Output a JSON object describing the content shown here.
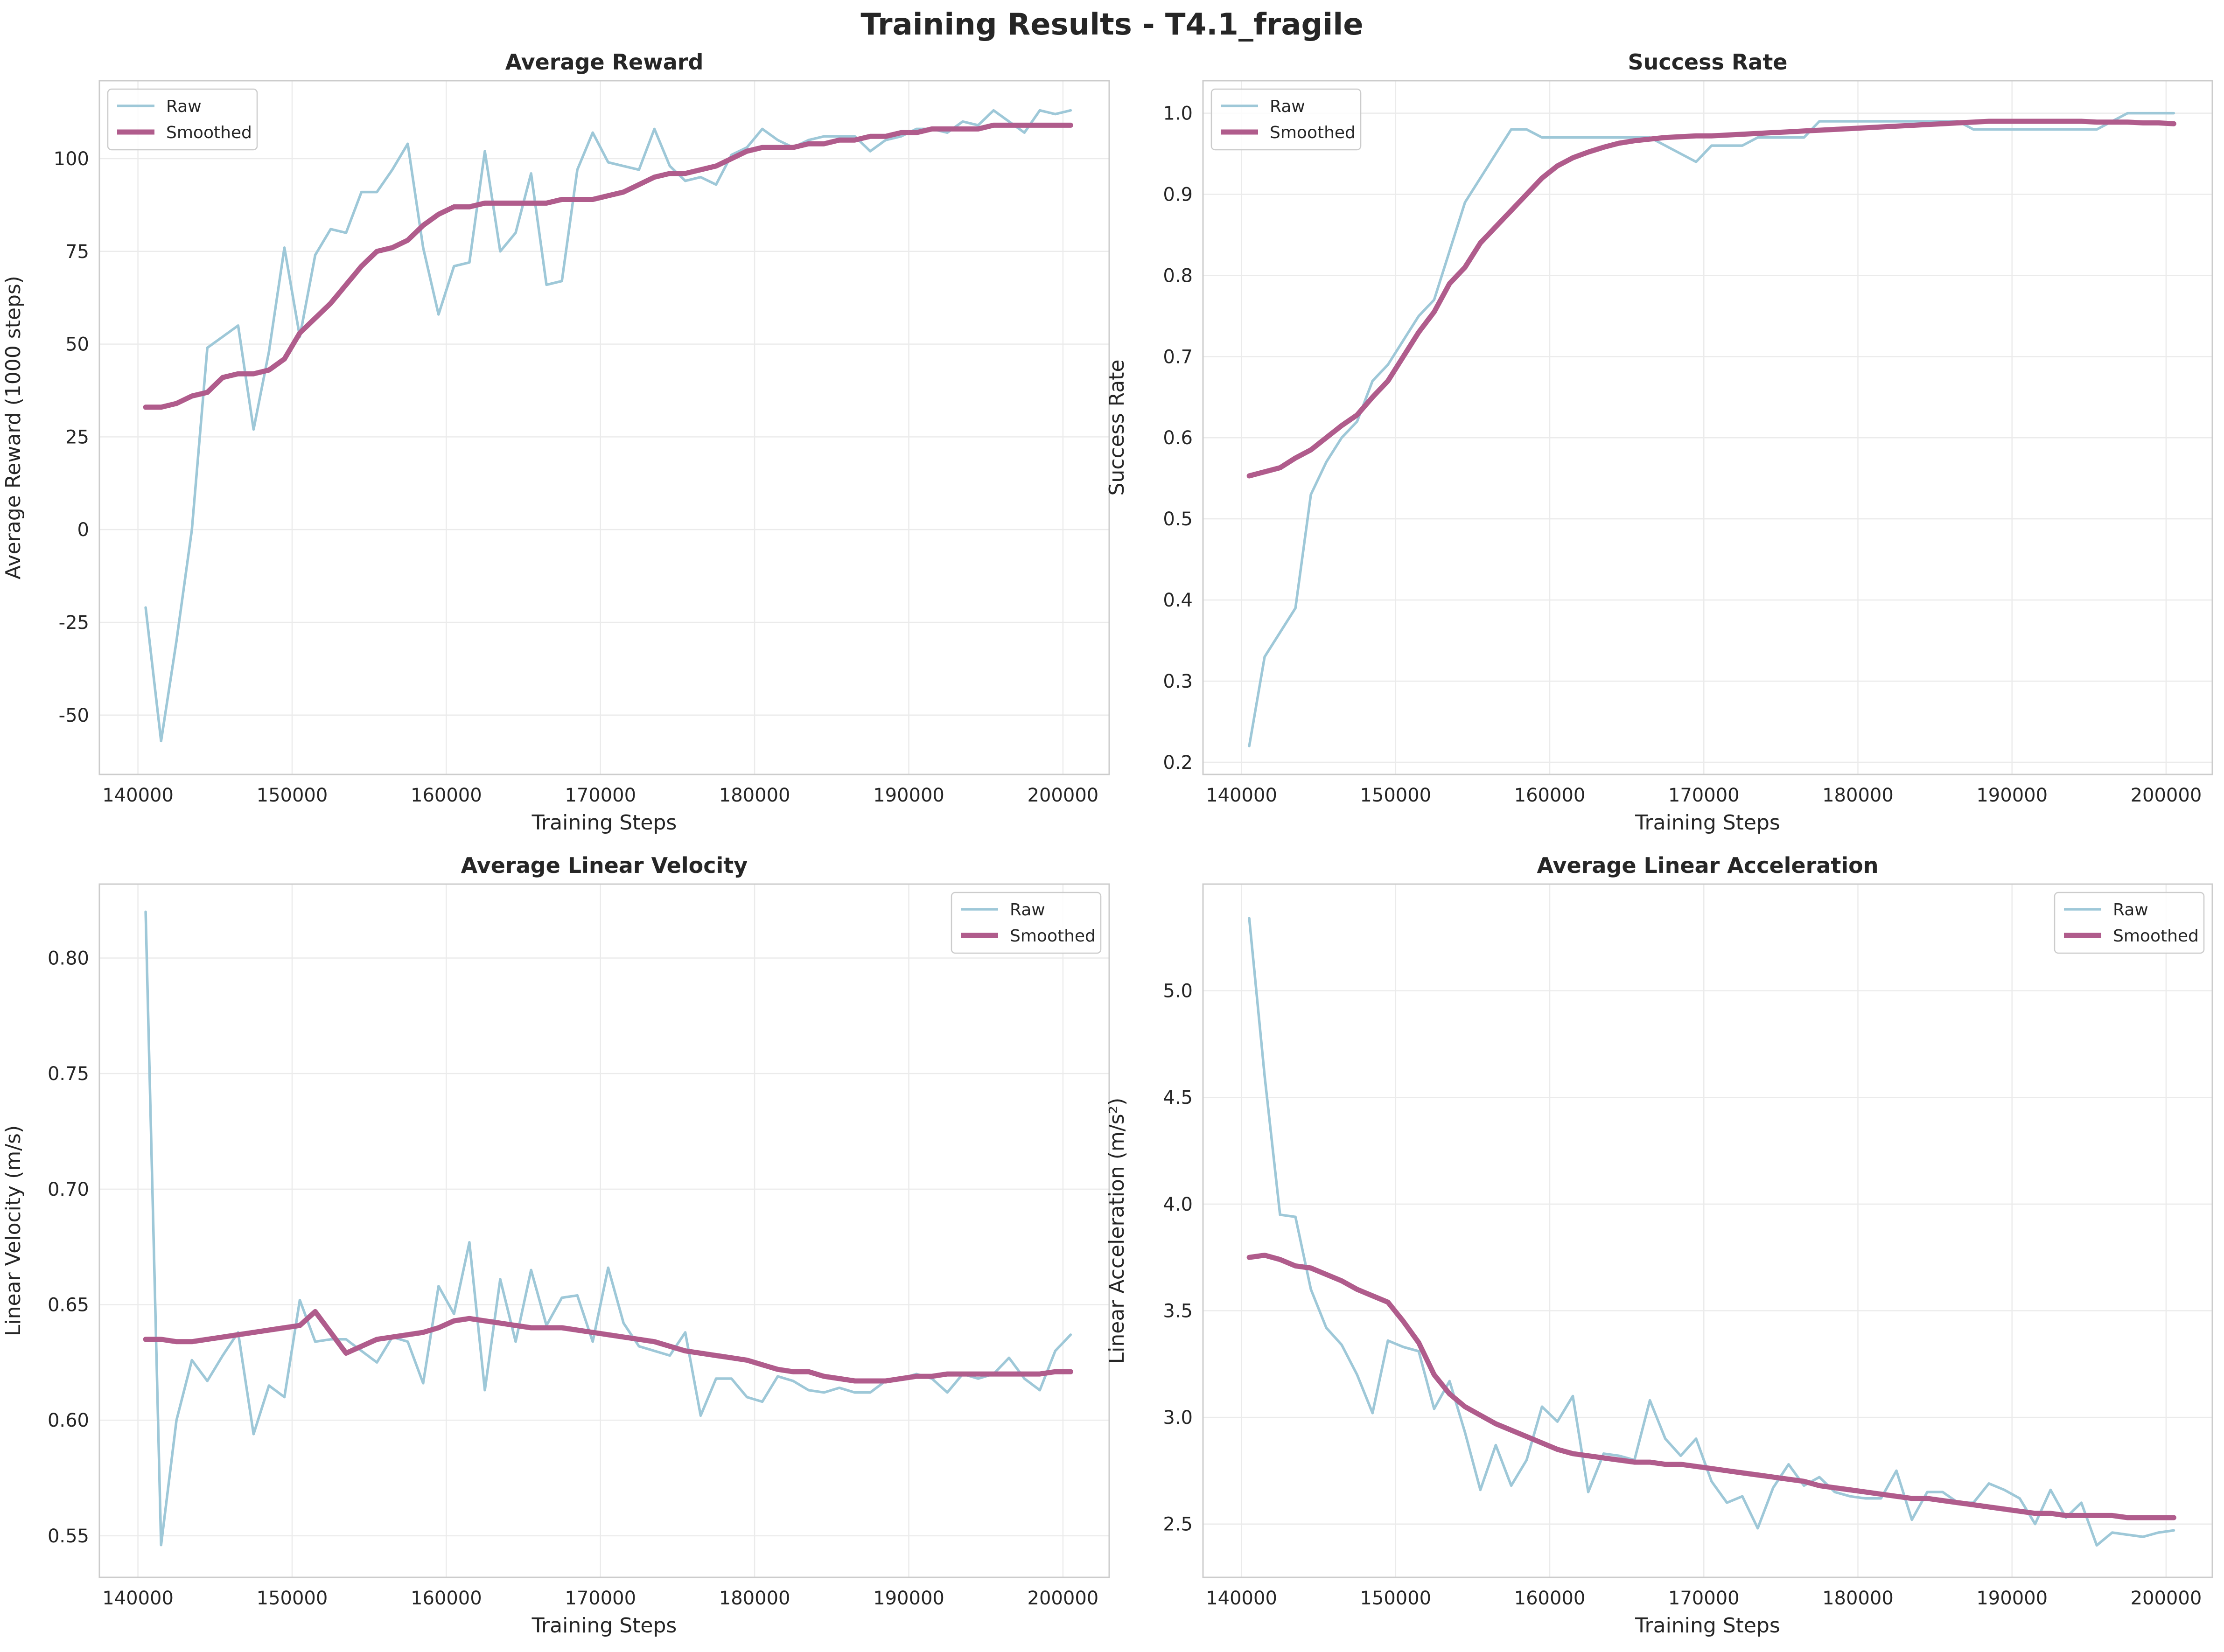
{
  "figure": {
    "title": "Training Results - T4.1_fragile"
  },
  "colors": {
    "raw": "#9ec8d8",
    "smoothed": "#b05c8c",
    "grid": "#ebebeb",
    "frame": "#cccccc",
    "text": "#262626"
  },
  "chart_data": [
    {
      "type": "line",
      "title": "Average Reward",
      "xlabel": "Training Steps",
      "ylabel": "Average Reward (1000 steps)",
      "xlim": [
        137500,
        203000
      ],
      "ylim": [
        -66,
        121
      ],
      "xticks": [
        140000,
        150000,
        160000,
        170000,
        180000,
        190000,
        200000
      ],
      "yticks": [
        -50,
        -25,
        0,
        25,
        50,
        75,
        100
      ],
      "ytick_labels": [
        "-50",
        "-25",
        "0",
        "25",
        "50",
        "75",
        "100"
      ],
      "legend": "top-left",
      "grid": true,
      "x": [
        140500,
        141500,
        142500,
        143500,
        144500,
        145500,
        146500,
        147500,
        148500,
        149500,
        150500,
        151500,
        152500,
        153500,
        154500,
        155500,
        156500,
        157500,
        158500,
        159500,
        160500,
        161500,
        162500,
        163500,
        164500,
        165500,
        166500,
        167500,
        168500,
        169500,
        170500,
        171500,
        172500,
        173500,
        174500,
        175500,
        176500,
        177500,
        178500,
        179500,
        180500,
        181500,
        182500,
        183500,
        184500,
        185500,
        186500,
        187500,
        188500,
        189500,
        190500,
        191500,
        192500,
        193500,
        194500,
        195500,
        196500,
        197500,
        198500,
        199500,
        200500
      ],
      "series": [
        {
          "name": "Raw",
          "values": [
            -21,
            -57,
            -30,
            0,
            49,
            52,
            55,
            27,
            48,
            76,
            52,
            74,
            81,
            80,
            91,
            91,
            97,
            104,
            76,
            58,
            71,
            72,
            102,
            75,
            80,
            96,
            66,
            67,
            97,
            107,
            99,
            98,
            97,
            108,
            98,
            94,
            95,
            93,
            101,
            103,
            108,
            105,
            103,
            105,
            106,
            106,
            106,
            102,
            105,
            106,
            108,
            108,
            107,
            110,
            109,
            113,
            110,
            107,
            113,
            112,
            113
          ]
        },
        {
          "name": "Smoothed",
          "values": [
            33,
            33,
            34,
            36,
            37,
            41,
            42,
            42,
            43,
            46,
            53,
            57,
            61,
            66,
            71,
            75,
            76,
            78,
            82,
            85,
            87,
            87,
            88,
            88,
            88,
            88,
            88,
            89,
            89,
            89,
            90,
            91,
            93,
            95,
            96,
            96,
            97,
            98,
            100,
            102,
            103,
            103,
            103,
            104,
            104,
            105,
            105,
            106,
            106,
            107,
            107,
            108,
            108,
            108,
            108,
            109,
            109,
            109,
            109,
            109,
            109
          ]
        }
      ]
    },
    {
      "type": "line",
      "title": "Success Rate",
      "xlabel": "Training Steps",
      "ylabel": "Success Rate",
      "xlim": [
        137500,
        203000
      ],
      "ylim": [
        0.185,
        1.04
      ],
      "xticks": [
        140000,
        150000,
        160000,
        170000,
        180000,
        190000,
        200000
      ],
      "yticks": [
        0.2,
        0.3,
        0.4,
        0.5,
        0.6,
        0.7,
        0.8,
        0.9,
        1.0
      ],
      "ytick_labels": [
        "0.2",
        "0.3",
        "0.4",
        "0.5",
        "0.6",
        "0.7",
        "0.8",
        "0.9",
        "1.0"
      ],
      "legend": "top-left",
      "grid": true,
      "x": [
        140500,
        141500,
        142500,
        143500,
        144500,
        145500,
        146500,
        147500,
        148500,
        149500,
        150500,
        151500,
        152500,
        153500,
        154500,
        155500,
        156500,
        157500,
        158500,
        159500,
        160500,
        161500,
        162500,
        163500,
        164500,
        165500,
        166500,
        167500,
        168500,
        169500,
        170500,
        171500,
        172500,
        173500,
        174500,
        175500,
        176500,
        177500,
        178500,
        179500,
        180500,
        181500,
        182500,
        183500,
        184500,
        185500,
        186500,
        187500,
        188500,
        189500,
        190500,
        191500,
        192500,
        193500,
        194500,
        195500,
        196500,
        197500,
        198500,
        199500,
        200500
      ],
      "series": [
        {
          "name": "Raw",
          "values": [
            0.22,
            0.33,
            0.36,
            0.39,
            0.53,
            0.57,
            0.6,
            0.62,
            0.67,
            0.69,
            0.72,
            0.75,
            0.77,
            0.83,
            0.89,
            0.92,
            0.95,
            0.98,
            0.98,
            0.97,
            0.97,
            0.97,
            0.97,
            0.97,
            0.97,
            0.97,
            0.97,
            0.96,
            0.95,
            0.94,
            0.96,
            0.96,
            0.96,
            0.97,
            0.97,
            0.97,
            0.97,
            0.99,
            0.99,
            0.99,
            0.99,
            0.99,
            0.99,
            0.99,
            0.99,
            0.99,
            0.99,
            0.98,
            0.98,
            0.98,
            0.98,
            0.98,
            0.98,
            0.98,
            0.98,
            0.98,
            0.99,
            1.0,
            1.0,
            1.0,
            1.0
          ]
        },
        {
          "name": "Smoothed",
          "values": [
            0.553,
            0.558,
            0.563,
            0.575,
            0.585,
            0.6,
            0.615,
            0.628,
            0.65,
            0.67,
            0.7,
            0.73,
            0.755,
            0.79,
            0.81,
            0.84,
            0.86,
            0.88,
            0.9,
            0.92,
            0.935,
            0.945,
            0.952,
            0.958,
            0.963,
            0.966,
            0.968,
            0.97,
            0.971,
            0.972,
            0.972,
            0.973,
            0.974,
            0.975,
            0.976,
            0.977,
            0.978,
            0.979,
            0.98,
            0.981,
            0.982,
            0.983,
            0.984,
            0.985,
            0.986,
            0.987,
            0.988,
            0.989,
            0.99,
            0.99,
            0.99,
            0.99,
            0.99,
            0.99,
            0.99,
            0.989,
            0.989,
            0.989,
            0.988,
            0.988,
            0.987
          ]
        }
      ]
    },
    {
      "type": "line",
      "title": "Average Linear Velocity",
      "xlabel": "Training Steps",
      "ylabel": "Linear Velocity (m/s)",
      "xlim": [
        137500,
        203000
      ],
      "ylim": [
        0.532,
        0.832
      ],
      "xticks": [
        140000,
        150000,
        160000,
        170000,
        180000,
        190000,
        200000
      ],
      "yticks": [
        0.55,
        0.6,
        0.65,
        0.7,
        0.75,
        0.8
      ],
      "ytick_labels": [
        "0.55",
        "0.60",
        "0.65",
        "0.70",
        "0.75",
        "0.80"
      ],
      "legend": "top-right",
      "grid": true,
      "x": [
        140500,
        141500,
        142500,
        143500,
        144500,
        145500,
        146500,
        147500,
        148500,
        149500,
        150500,
        151500,
        152500,
        153500,
        154500,
        155500,
        156500,
        157500,
        158500,
        159500,
        160500,
        161500,
        162500,
        163500,
        164500,
        165500,
        166500,
        167500,
        168500,
        169500,
        170500,
        171500,
        172500,
        173500,
        174500,
        175500,
        176500,
        177500,
        178500,
        179500,
        180500,
        181500,
        182500,
        183500,
        184500,
        185500,
        186500,
        187500,
        188500,
        189500,
        190500,
        191500,
        192500,
        193500,
        194500,
        195500,
        196500,
        197500,
        198500,
        199500,
        200500
      ],
      "series": [
        {
          "name": "Raw",
          "values": [
            0.82,
            0.546,
            0.6,
            0.626,
            0.617,
            0.628,
            0.638,
            0.594,
            0.615,
            0.61,
            0.652,
            0.634,
            0.635,
            0.635,
            0.63,
            0.625,
            0.636,
            0.634,
            0.616,
            0.658,
            0.646,
            0.677,
            0.613,
            0.661,
            0.634,
            0.665,
            0.641,
            0.653,
            0.654,
            0.634,
            0.666,
            0.642,
            0.632,
            0.63,
            0.628,
            0.638,
            0.602,
            0.618,
            0.618,
            0.61,
            0.608,
            0.619,
            0.617,
            0.613,
            0.612,
            0.614,
            0.612,
            0.612,
            0.617,
            0.618,
            0.62,
            0.618,
            0.612,
            0.62,
            0.618,
            0.62,
            0.627,
            0.618,
            0.613,
            0.63,
            0.637
          ]
        },
        {
          "name": "Smoothed",
          "values": [
            0.635,
            0.635,
            0.634,
            0.634,
            0.635,
            0.636,
            0.637,
            0.638,
            0.639,
            0.64,
            0.641,
            0.647,
            0.638,
            0.629,
            0.632,
            0.635,
            0.636,
            0.637,
            0.638,
            0.64,
            0.643,
            0.644,
            0.643,
            0.642,
            0.641,
            0.64,
            0.64,
            0.64,
            0.639,
            0.638,
            0.637,
            0.636,
            0.635,
            0.634,
            0.632,
            0.63,
            0.629,
            0.628,
            0.627,
            0.626,
            0.624,
            0.622,
            0.621,
            0.621,
            0.619,
            0.618,
            0.617,
            0.617,
            0.617,
            0.618,
            0.619,
            0.619,
            0.62,
            0.62,
            0.62,
            0.62,
            0.62,
            0.62,
            0.62,
            0.621,
            0.621
          ]
        }
      ]
    },
    {
      "type": "line",
      "title": "Average Linear Acceleration",
      "xlabel": "Training Steps",
      "ylabel": "Linear Acceleration (m/s²)",
      "xlim": [
        137500,
        203000
      ],
      "ylim": [
        2.25,
        5.5
      ],
      "xticks": [
        140000,
        150000,
        160000,
        170000,
        180000,
        190000,
        200000
      ],
      "yticks": [
        2.5,
        3.0,
        3.5,
        4.0,
        4.5,
        5.0
      ],
      "ytick_labels": [
        "2.5",
        "3.0",
        "3.5",
        "4.0",
        "4.5",
        "5.0"
      ],
      "legend": "top-right",
      "grid": true,
      "x": [
        140500,
        141500,
        142500,
        143500,
        144500,
        145500,
        146500,
        147500,
        148500,
        149500,
        150500,
        151500,
        152500,
        153500,
        154500,
        155500,
        156500,
        157500,
        158500,
        159500,
        160500,
        161500,
        162500,
        163500,
        164500,
        165500,
        166500,
        167500,
        168500,
        169500,
        170500,
        171500,
        172500,
        173500,
        174500,
        175500,
        176500,
        177500,
        178500,
        179500,
        180500,
        181500,
        182500,
        183500,
        184500,
        185500,
        186500,
        187500,
        188500,
        189500,
        190500,
        191500,
        192500,
        193500,
        194500,
        195500,
        196500,
        197500,
        198500,
        199500,
        200500
      ],
      "series": [
        {
          "name": "Raw",
          "values": [
            5.34,
            4.6,
            3.95,
            3.94,
            3.6,
            3.42,
            3.34,
            3.2,
            3.02,
            3.36,
            3.33,
            3.31,
            3.04,
            3.17,
            2.93,
            2.66,
            2.87,
            2.68,
            2.8,
            3.05,
            2.98,
            3.1,
            2.65,
            2.83,
            2.82,
            2.8,
            3.08,
            2.9,
            2.82,
            2.9,
            2.7,
            2.6,
            2.63,
            2.48,
            2.67,
            2.78,
            2.68,
            2.72,
            2.65,
            2.63,
            2.62,
            2.62,
            2.75,
            2.52,
            2.65,
            2.65,
            2.6,
            2.6,
            2.69,
            2.66,
            2.62,
            2.5,
            2.66,
            2.53,
            2.6,
            2.4,
            2.46,
            2.45,
            2.44,
            2.46,
            2.47
          ]
        },
        {
          "name": "Smoothed",
          "values": [
            3.75,
            3.76,
            3.74,
            3.71,
            3.7,
            3.67,
            3.64,
            3.6,
            3.57,
            3.54,
            3.45,
            3.35,
            3.2,
            3.11,
            3.05,
            3.01,
            2.97,
            2.94,
            2.91,
            2.88,
            2.85,
            2.83,
            2.82,
            2.81,
            2.8,
            2.79,
            2.79,
            2.78,
            2.78,
            2.77,
            2.76,
            2.75,
            2.74,
            2.73,
            2.72,
            2.71,
            2.7,
            2.68,
            2.67,
            2.66,
            2.65,
            2.64,
            2.63,
            2.62,
            2.62,
            2.61,
            2.6,
            2.59,
            2.58,
            2.57,
            2.56,
            2.55,
            2.55,
            2.54,
            2.54,
            2.54,
            2.54,
            2.53,
            2.53,
            2.53,
            2.53
          ]
        }
      ]
    }
  ]
}
